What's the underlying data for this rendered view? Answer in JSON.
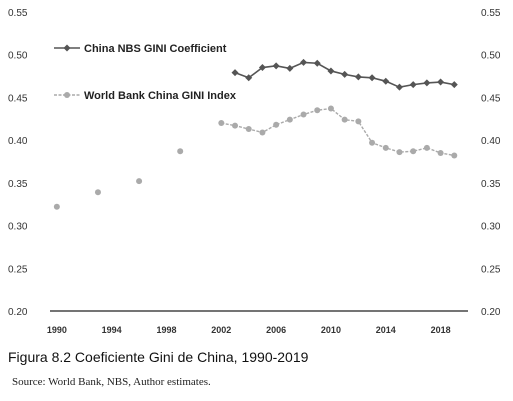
{
  "caption": "Figura 8.2  Coeficiente Gini de China, 1990-2019",
  "source": "Source: World Bank, NBS, Author estimates.",
  "chart_data": {
    "type": "line",
    "title": "",
    "xlabel": "",
    "ylabel": "",
    "xlim": [
      1989.5,
      2020
    ],
    "ylim": [
      0.2,
      0.55
    ],
    "x_ticks": [
      1990,
      1994,
      1998,
      2002,
      2006,
      2010,
      2014,
      2018
    ],
    "y_ticks": [
      0.2,
      0.25,
      0.3,
      0.35,
      0.4,
      0.45,
      0.5,
      0.55
    ],
    "y_tick_labels_left": [
      "0.20",
      "0.25",
      "0.30",
      "0.35",
      "0.40",
      "0.45",
      "0.50",
      "0.55"
    ],
    "y_tick_labels_right": [
      "0.20",
      "0.25",
      "0.30",
      "0.35",
      "0.40",
      "0.45",
      "0.50",
      "0.55"
    ],
    "grid": false,
    "legend_position": "top-left",
    "series": [
      {
        "name": "China NBS GINI Coefficient",
        "color": "#555555",
        "marker": "diamond",
        "x": [
          2003,
          2004,
          2005,
          2006,
          2007,
          2008,
          2009,
          2010,
          2011,
          2012,
          2013,
          2014,
          2015,
          2016,
          2017,
          2018,
          2019
        ],
        "y": [
          0.479,
          0.473,
          0.485,
          0.487,
          0.484,
          0.491,
          0.49,
          0.481,
          0.477,
          0.474,
          0.473,
          0.469,
          0.462,
          0.465,
          0.467,
          0.468,
          0.465
        ]
      },
      {
        "name": "World Bank China GINI Index",
        "color": "#aaaaaa",
        "marker": "circle",
        "x": [
          1990,
          1993,
          1996,
          1999,
          2002,
          2003,
          2004,
          2005,
          2006,
          2007,
          2008,
          2009,
          2010,
          2011,
          2012,
          2013,
          2014,
          2015,
          2016,
          2017,
          2018,
          2019
        ],
        "y": [
          0.322,
          0.339,
          0.352,
          0.387,
          0.42,
          0.417,
          0.413,
          0.409,
          0.418,
          0.424,
          0.43,
          0.435,
          0.437,
          0.424,
          0.422,
          0.397,
          0.391,
          0.386,
          0.387,
          0.391,
          0.385,
          0.382
        ],
        "connected_from_index": 4
      }
    ]
  }
}
